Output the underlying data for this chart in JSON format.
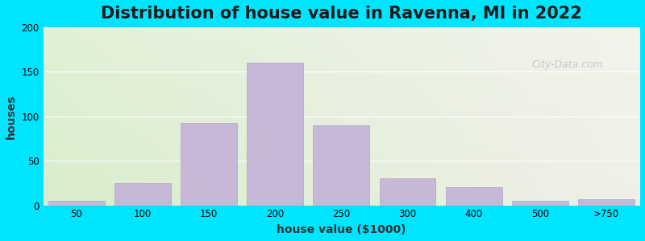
{
  "title": "Distribution of house value in Ravenna, MI in 2022",
  "xlabel": "house value ($1000)",
  "ylabel": "houses",
  "categories": [
    "50",
    "100",
    "150",
    "200",
    "250",
    "300",
    "400",
    "500",
    ">750"
  ],
  "bar_heights": [
    5,
    25,
    93,
    160,
    90,
    30,
    20,
    5,
    7
  ],
  "bar_color": "#c8b8d8",
  "bar_edgecolor": "#b0a0c8",
  "ylim": [
    0,
    200
  ],
  "yticks": [
    0,
    50,
    100,
    150,
    200
  ],
  "outer_bg": "#00e5ff",
  "plot_bg_left": "#d8edcc",
  "plot_bg_right": "#f0f0e8",
  "title_fontsize": 15,
  "axis_label_fontsize": 10,
  "watermark_text": "City-Data.com"
}
